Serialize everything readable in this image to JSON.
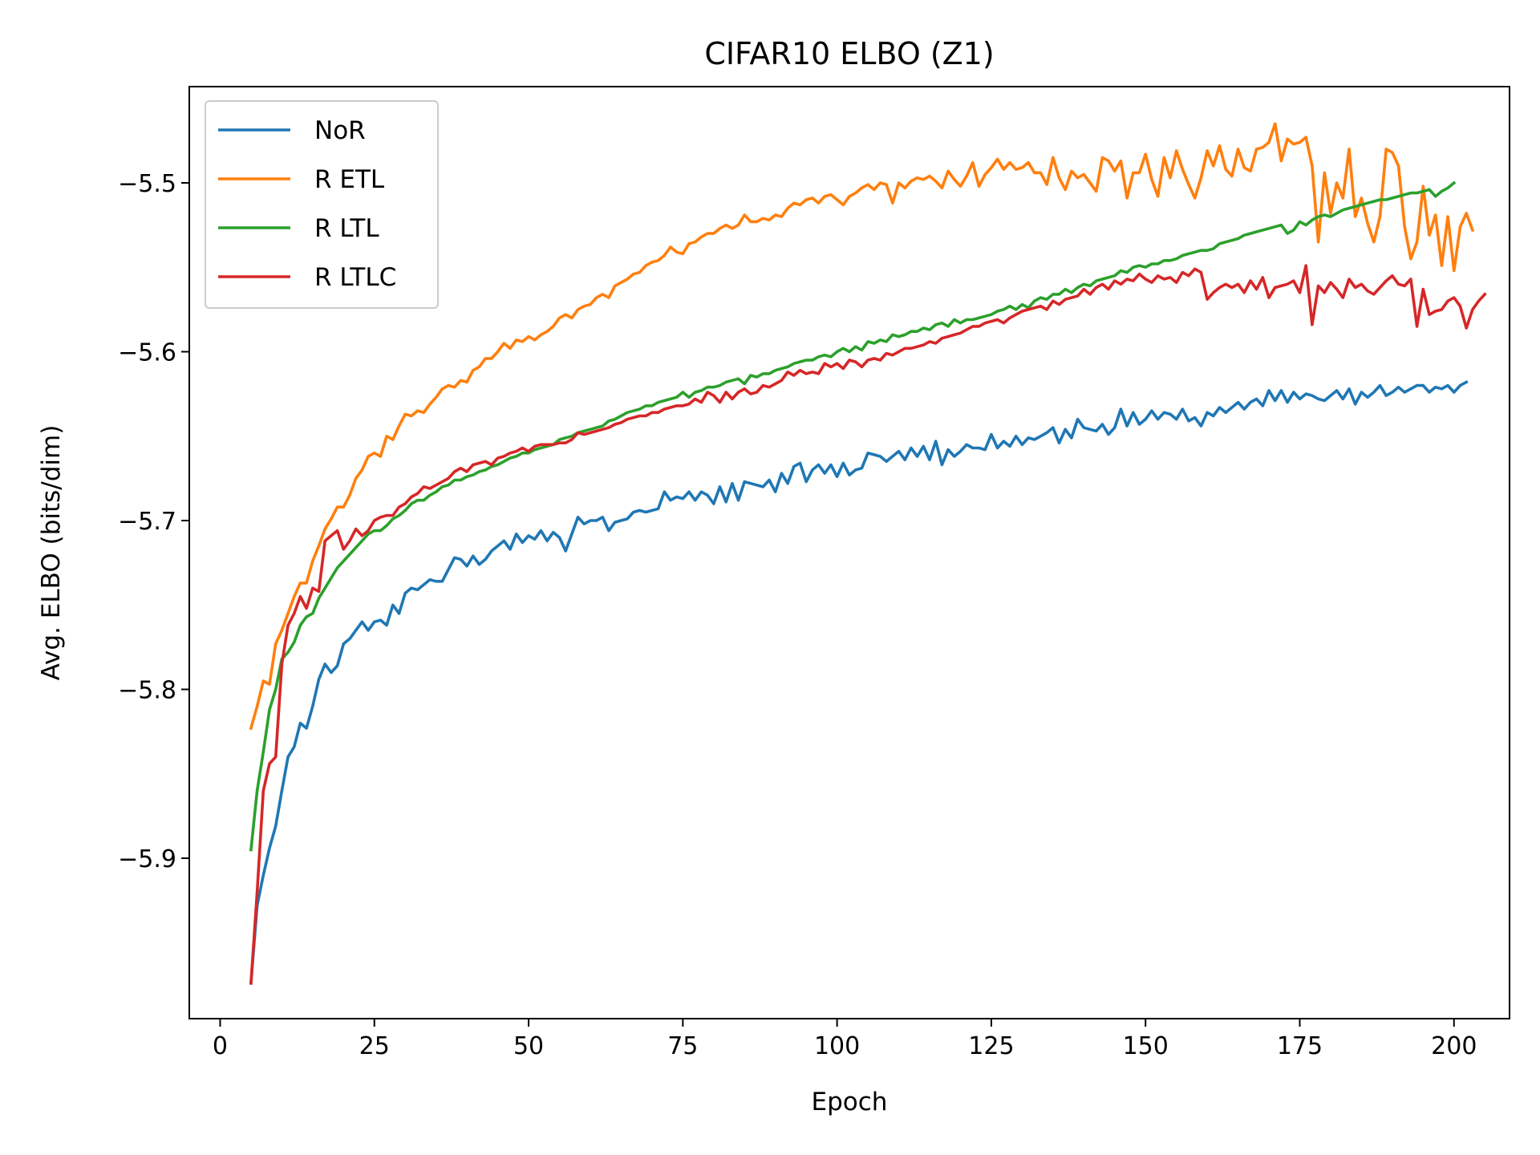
{
  "chart_data": {
    "type": "line",
    "title": "CIFAR10 ELBO (Z1)",
    "xlabel": "Epoch",
    "ylabel": "Avg. ELBO (bits/dim)",
    "xlim": [
      -5,
      209
    ],
    "ylim": [
      -5.995,
      -5.443
    ],
    "xticks": [
      0,
      25,
      50,
      75,
      100,
      125,
      150,
      175,
      200
    ],
    "yticks": [
      -5.9,
      -5.8,
      -5.7,
      -5.6,
      -5.5
    ],
    "grid": false,
    "legend_position": "top-left",
    "x_start": 5,
    "x_step": 1,
    "series": [
      {
        "name": "NoR",
        "color": "#1f77b4",
        "values": [
          -5.974,
          -5.928,
          -5.91,
          -5.894,
          -5.881,
          -5.86,
          -5.84,
          -5.834,
          -5.82,
          -5.823,
          -5.81,
          -5.794,
          -5.785,
          -5.79,
          -5.786,
          -5.773,
          -5.77,
          -5.765,
          -5.76,
          -5.765,
          -5.76,
          -5.759,
          -5.762,
          -5.75,
          -5.755,
          -5.743,
          -5.74,
          -5.741,
          -5.738,
          -5.735,
          -5.736,
          -5.736,
          -5.729,
          -5.722,
          -5.723,
          -5.727,
          -5.721,
          -5.726,
          -5.723,
          -5.718,
          -5.715,
          -5.712,
          -5.717,
          -5.708,
          -5.713,
          -5.709,
          -5.711,
          -5.706,
          -5.712,
          -5.707,
          -5.71,
          -5.718,
          -5.708,
          -5.698,
          -5.702,
          -5.7,
          -5.7,
          -5.698,
          -5.706,
          -5.701,
          -5.7,
          -5.699,
          -5.695,
          -5.694,
          -5.695,
          -5.694,
          -5.693,
          -5.683,
          -5.688,
          -5.686,
          -5.687,
          -5.683,
          -5.688,
          -5.683,
          -5.685,
          -5.69,
          -5.68,
          -5.689,
          -5.678,
          -5.688,
          -5.677,
          -5.678,
          -5.679,
          -5.68,
          -5.676,
          -5.683,
          -5.672,
          -5.678,
          -5.668,
          -5.666,
          -5.677,
          -5.67,
          -5.667,
          -5.672,
          -5.667,
          -5.674,
          -5.666,
          -5.673,
          -5.67,
          -5.669,
          -5.66,
          -5.661,
          -5.662,
          -5.665,
          -5.662,
          -5.659,
          -5.664,
          -5.657,
          -5.662,
          -5.656,
          -5.664,
          -5.653,
          -5.667,
          -5.658,
          -5.662,
          -5.659,
          -5.655,
          -5.657,
          -5.657,
          -5.658,
          -5.649,
          -5.657,
          -5.653,
          -5.656,
          -5.65,
          -5.655,
          -5.651,
          -5.652,
          -5.65,
          -5.648,
          -5.645,
          -5.654,
          -5.646,
          -5.651,
          -5.64,
          -5.645,
          -5.646,
          -5.647,
          -5.643,
          -5.649,
          -5.645,
          -5.634,
          -5.644,
          -5.636,
          -5.643,
          -5.64,
          -5.635,
          -5.64,
          -5.636,
          -5.637,
          -5.64,
          -5.634,
          -5.641,
          -5.639,
          -5.644,
          -5.636,
          -5.638,
          -5.633,
          -5.636,
          -5.633,
          -5.63,
          -5.634,
          -5.63,
          -5.628,
          -5.632,
          -5.623,
          -5.629,
          -5.623,
          -5.63,
          -5.624,
          -5.628,
          -5.625,
          -5.626,
          -5.628,
          -5.629,
          -5.626,
          -5.623,
          -5.628,
          -5.622,
          -5.631,
          -5.624,
          -5.627,
          -5.624,
          -5.62,
          -5.626,
          -5.624,
          -5.621,
          -5.624,
          -5.622,
          -5.62,
          -5.62,
          -5.624,
          -5.621,
          -5.622,
          -5.62,
          -5.624,
          -5.62,
          -5.618
        ]
      },
      {
        "name": "R ETL",
        "color": "#ff7f0e",
        "values": [
          -5.823,
          -5.81,
          -5.795,
          -5.797,
          -5.773,
          -5.765,
          -5.755,
          -5.745,
          -5.737,
          -5.737,
          -5.724,
          -5.715,
          -5.705,
          -5.699,
          -5.692,
          -5.692,
          -5.685,
          -5.675,
          -5.67,
          -5.662,
          -5.66,
          -5.662,
          -5.65,
          -5.652,
          -5.644,
          -5.637,
          -5.638,
          -5.635,
          -5.636,
          -5.631,
          -5.627,
          -5.622,
          -5.62,
          -5.621,
          -5.617,
          -5.618,
          -5.611,
          -5.609,
          -5.604,
          -5.604,
          -5.6,
          -5.595,
          -5.598,
          -5.593,
          -5.594,
          -5.591,
          -5.593,
          -5.59,
          -5.588,
          -5.585,
          -5.58,
          -5.578,
          -5.58,
          -5.575,
          -5.573,
          -5.572,
          -5.568,
          -5.566,
          -5.568,
          -5.561,
          -5.559,
          -5.557,
          -5.554,
          -5.553,
          -5.549,
          -5.547,
          -5.546,
          -5.543,
          -5.538,
          -5.541,
          -5.542,
          -5.536,
          -5.535,
          -5.532,
          -5.53,
          -5.53,
          -5.527,
          -5.525,
          -5.527,
          -5.525,
          -5.519,
          -5.523,
          -5.523,
          -5.521,
          -5.522,
          -5.519,
          -5.52,
          -5.515,
          -5.512,
          -5.513,
          -5.51,
          -5.509,
          -5.512,
          -5.508,
          -5.507,
          -5.51,
          -5.513,
          -5.508,
          -5.506,
          -5.503,
          -5.501,
          -5.504,
          -5.5,
          -5.501,
          -5.512,
          -5.5,
          -5.503,
          -5.499,
          -5.497,
          -5.498,
          -5.496,
          -5.499,
          -5.503,
          -5.493,
          -5.498,
          -5.502,
          -5.496,
          -5.488,
          -5.502,
          -5.495,
          -5.491,
          -5.486,
          -5.492,
          -5.488,
          -5.492,
          -5.491,
          -5.488,
          -5.494,
          -5.494,
          -5.501,
          -5.485,
          -5.497,
          -5.504,
          -5.493,
          -5.497,
          -5.495,
          -5.5,
          -5.505,
          -5.485,
          -5.487,
          -5.493,
          -5.487,
          -5.509,
          -5.494,
          -5.494,
          -5.483,
          -5.498,
          -5.508,
          -5.485,
          -5.497,
          -5.481,
          -5.492,
          -5.501,
          -5.509,
          -5.497,
          -5.481,
          -5.49,
          -5.478,
          -5.492,
          -5.496,
          -5.48,
          -5.491,
          -5.493,
          -5.48,
          -5.479,
          -5.476,
          -5.465,
          -5.487,
          -5.474,
          -5.477,
          -5.476,
          -5.473,
          -5.49,
          -5.535,
          -5.494,
          -5.518,
          -5.5,
          -5.509,
          -5.48,
          -5.52,
          -5.509,
          -5.524,
          -5.535,
          -5.52,
          -5.48,
          -5.482,
          -5.49,
          -5.526,
          -5.545,
          -5.535,
          -5.502,
          -5.531,
          -5.519,
          -5.549,
          -5.52,
          -5.552,
          -5.526,
          -5.518,
          -5.528
        ]
      },
      {
        "name": "R LTL",
        "color": "#2ca02c",
        "values": [
          -5.895,
          -5.86,
          -5.837,
          -5.812,
          -5.8,
          -5.782,
          -5.778,
          -5.772,
          -5.762,
          -5.757,
          -5.755,
          -5.746,
          -5.74,
          -5.734,
          -5.728,
          -5.724,
          -5.72,
          -5.716,
          -5.712,
          -5.708,
          -5.706,
          -5.706,
          -5.703,
          -5.699,
          -5.697,
          -5.694,
          -5.69,
          -5.688,
          -5.688,
          -5.685,
          -5.683,
          -5.68,
          -5.679,
          -5.676,
          -5.676,
          -5.674,
          -5.673,
          -5.671,
          -5.67,
          -5.668,
          -5.667,
          -5.665,
          -5.663,
          -5.662,
          -5.66,
          -5.66,
          -5.658,
          -5.657,
          -5.656,
          -5.655,
          -5.652,
          -5.651,
          -5.65,
          -5.648,
          -5.647,
          -5.646,
          -5.645,
          -5.644,
          -5.641,
          -5.64,
          -5.638,
          -5.636,
          -5.635,
          -5.634,
          -5.632,
          -5.632,
          -5.63,
          -5.629,
          -5.628,
          -5.627,
          -5.624,
          -5.627,
          -5.624,
          -5.623,
          -5.621,
          -5.621,
          -5.62,
          -5.618,
          -5.617,
          -5.616,
          -5.619,
          -5.614,
          -5.615,
          -5.613,
          -5.613,
          -5.611,
          -5.61,
          -5.609,
          -5.607,
          -5.606,
          -5.605,
          -5.605,
          -5.603,
          -5.602,
          -5.603,
          -5.6,
          -5.598,
          -5.6,
          -5.597,
          -5.599,
          -5.594,
          -5.595,
          -5.593,
          -5.594,
          -5.59,
          -5.591,
          -5.59,
          -5.588,
          -5.588,
          -5.586,
          -5.587,
          -5.584,
          -5.583,
          -5.585,
          -5.581,
          -5.583,
          -5.581,
          -5.581,
          -5.58,
          -5.579,
          -5.578,
          -5.576,
          -5.575,
          -5.573,
          -5.575,
          -5.572,
          -5.574,
          -5.57,
          -5.568,
          -5.569,
          -5.566,
          -5.566,
          -5.563,
          -5.565,
          -5.562,
          -5.56,
          -5.561,
          -5.558,
          -5.557,
          -5.556,
          -5.555,
          -5.552,
          -5.553,
          -5.55,
          -5.549,
          -5.55,
          -5.548,
          -5.548,
          -5.546,
          -5.546,
          -5.545,
          -5.543,
          -5.542,
          -5.541,
          -5.54,
          -5.54,
          -5.539,
          -5.536,
          -5.535,
          -5.534,
          -5.533,
          -5.531,
          -5.53,
          -5.529,
          -5.528,
          -5.527,
          -5.526,
          -5.525,
          -5.53,
          -5.528,
          -5.523,
          -5.525,
          -5.522,
          -5.52,
          -5.519,
          -5.52,
          -5.518,
          -5.516,
          -5.515,
          -5.514,
          -5.513,
          -5.512,
          -5.511,
          -5.51,
          -5.51,
          -5.509,
          -5.508,
          -5.507,
          -5.506,
          -5.506,
          -5.505,
          -5.504,
          -5.508,
          -5.505,
          -5.503,
          -5.5
        ]
      },
      {
        "name": "R LTLC",
        "color": "#d62728",
        "values": [
          -5.974,
          -5.92,
          -5.86,
          -5.844,
          -5.84,
          -5.785,
          -5.762,
          -5.755,
          -5.745,
          -5.752,
          -5.74,
          -5.742,
          -5.712,
          -5.709,
          -5.706,
          -5.717,
          -5.712,
          -5.705,
          -5.709,
          -5.706,
          -5.7,
          -5.698,
          -5.697,
          -5.697,
          -5.692,
          -5.69,
          -5.686,
          -5.684,
          -5.68,
          -5.681,
          -5.679,
          -5.677,
          -5.675,
          -5.671,
          -5.669,
          -5.671,
          -5.667,
          -5.666,
          -5.665,
          -5.667,
          -5.663,
          -5.662,
          -5.66,
          -5.659,
          -5.657,
          -5.659,
          -5.656,
          -5.655,
          -5.655,
          -5.655,
          -5.654,
          -5.654,
          -5.652,
          -5.648,
          -5.649,
          -5.648,
          -5.647,
          -5.646,
          -5.645,
          -5.643,
          -5.642,
          -5.64,
          -5.639,
          -5.638,
          -5.638,
          -5.636,
          -5.636,
          -5.634,
          -5.633,
          -5.632,
          -5.632,
          -5.631,
          -5.628,
          -5.63,
          -5.624,
          -5.626,
          -5.63,
          -5.624,
          -5.628,
          -5.624,
          -5.622,
          -5.625,
          -5.624,
          -5.62,
          -5.621,
          -5.619,
          -5.617,
          -5.612,
          -5.614,
          -5.611,
          -5.613,
          -5.612,
          -5.613,
          -5.607,
          -5.609,
          -5.607,
          -5.61,
          -5.605,
          -5.606,
          -5.609,
          -5.605,
          -5.604,
          -5.605,
          -5.601,
          -5.602,
          -5.6,
          -5.598,
          -5.598,
          -5.597,
          -5.596,
          -5.594,
          -5.595,
          -5.592,
          -5.591,
          -5.59,
          -5.589,
          -5.587,
          -5.585,
          -5.585,
          -5.583,
          -5.582,
          -5.581,
          -5.583,
          -5.58,
          -5.578,
          -5.576,
          -5.575,
          -5.574,
          -5.573,
          -5.575,
          -5.57,
          -5.572,
          -5.569,
          -5.568,
          -5.567,
          -5.563,
          -5.566,
          -5.562,
          -5.56,
          -5.563,
          -5.558,
          -5.56,
          -5.557,
          -5.558,
          -5.554,
          -5.557,
          -5.559,
          -5.555,
          -5.557,
          -5.556,
          -5.559,
          -5.553,
          -5.555,
          -5.551,
          -5.553,
          -5.569,
          -5.565,
          -5.562,
          -5.56,
          -5.562,
          -5.56,
          -5.565,
          -5.558,
          -5.563,
          -5.556,
          -5.568,
          -5.562,
          -5.561,
          -5.56,
          -5.558,
          -5.565,
          -5.549,
          -5.584,
          -5.561,
          -5.565,
          -5.559,
          -5.563,
          -5.568,
          -5.557,
          -5.562,
          -5.56,
          -5.564,
          -5.566,
          -5.562,
          -5.558,
          -5.555,
          -5.56,
          -5.561,
          -5.557,
          -5.585,
          -5.563,
          -5.578,
          -5.576,
          -5.575,
          -5.57,
          -5.568,
          -5.573,
          -5.586,
          -5.575,
          -5.57,
          -5.566
        ]
      }
    ]
  }
}
